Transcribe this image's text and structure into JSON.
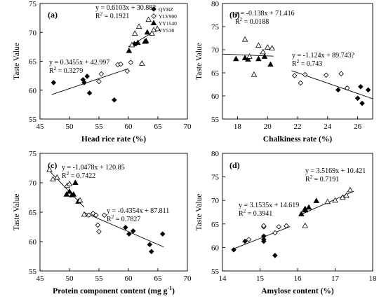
{
  "chart_data": [
    {
      "type": "scatter",
      "panel_label": "(a)",
      "xlabel": "Head rice rate (%)",
      "ylabel": "Taste Value",
      "xlim": [
        45,
        70
      ],
      "ylim": [
        55,
        75
      ],
      "xticks": [
        45,
        50,
        55,
        60,
        65,
        70
      ],
      "yticks": [
        55,
        60,
        65,
        70,
        75
      ],
      "legend": [
        "QYHZ",
        "YLY900",
        "YY1540",
        "YY538"
      ],
      "series": [
        {
          "name": "QYHZ",
          "marker": "filled-diamond",
          "points": [
            [
              47.3,
              61.3
            ],
            [
              52.3,
              61.8
            ],
            [
              52.5,
              61.3
            ],
            [
              53.0,
              62.4
            ],
            [
              53.4,
              59.5
            ],
            [
              57.6,
              58.3
            ]
          ]
        },
        {
          "name": "YLY900",
          "marker": "open-diamond",
          "points": [
            [
              55.0,
              61.5
            ],
            [
              55.4,
              62.8
            ],
            [
              58.2,
              64.4
            ],
            [
              58.7,
              64.5
            ],
            [
              59.8,
              63.3
            ],
            [
              60.4,
              64.8
            ]
          ]
        },
        {
          "name": "YY1540",
          "marker": "filled-triangle",
          "points": [
            [
              60.1,
              66.8
            ],
            [
              61.0,
              68.0
            ],
            [
              61.6,
              68.2
            ],
            [
              62.8,
              68.4
            ],
            [
              63.0,
              68.5
            ],
            [
              63.2,
              70.0
            ]
          ]
        },
        {
          "name": "YY538",
          "marker": "open-triangle",
          "points": [
            [
              60.6,
              67.8
            ],
            [
              61.1,
              69.8
            ],
            [
              61.8,
              71.0
            ],
            [
              62.3,
              64.6
            ],
            [
              63.4,
              72.2
            ],
            [
              64.0,
              69.8
            ],
            [
              64.9,
              70.6
            ]
          ]
        }
      ],
      "fits": [
        {
          "eq": "y = 0.6103x + 30.882",
          "r2": "0.1921",
          "slope": 0.6103,
          "intercept": 30.882,
          "xrange": [
            60,
            65
          ]
        },
        {
          "eq": "y = 0.3455x + 42.997",
          "r2": "0.3279",
          "slope": 0.3455,
          "intercept": 42.997,
          "xrange": [
            47,
            60
          ]
        }
      ]
    },
    {
      "type": "scatter",
      "panel_label": "(b)",
      "xlabel": "Chalkiness rate (%)",
      "ylabel": "Taste Value",
      "xlim": [
        17,
        27
      ],
      "ylim": [
        55,
        80
      ],
      "xticks": [
        18,
        20,
        22,
        24,
        26
      ],
      "yticks": [
        55,
        60,
        65,
        70,
        75,
        80
      ],
      "series": [
        {
          "name": "QYHZ",
          "marker": "filled-diamond",
          "points": [
            [
              24.7,
              61.3
            ],
            [
              26.0,
              59.5
            ],
            [
              26.2,
              62.0
            ],
            [
              26.3,
              58.4
            ],
            [
              26.7,
              61.3
            ]
          ]
        },
        {
          "name": "YLY900",
          "marker": "open-diamond",
          "points": [
            [
              21.8,
              64.4
            ],
            [
              22.2,
              62.8
            ],
            [
              22.5,
              64.6
            ],
            [
              23.9,
              64.5
            ],
            [
              24.9,
              64.8
            ],
            [
              25.3,
              61.7
            ]
          ]
        },
        {
          "name": "YY1540",
          "marker": "filled-triangle",
          "points": [
            [
              17.9,
              68.0
            ],
            [
              18.5,
              68.2
            ],
            [
              18.7,
              67.9
            ],
            [
              19.4,
              68.0
            ],
            [
              19.8,
              68.5
            ],
            [
              20.2,
              66.8
            ]
          ]
        },
        {
          "name": "YY538",
          "marker": "open-triangle",
          "points": [
            [
              18.5,
              72.2
            ],
            [
              18.8,
              68.5
            ],
            [
              19.1,
              64.6
            ],
            [
              19.4,
              70.9
            ],
            [
              19.7,
              69.5
            ],
            [
              20.0,
              70.5
            ],
            [
              20.3,
              70.3
            ]
          ]
        }
      ],
      "fits": [
        {
          "eq": "y = -0.138x + 71.416",
          "r2": "0.0188",
          "slope": -0.138,
          "intercept": 71.416,
          "xrange": [
            17,
            20.4
          ]
        },
        {
          "eq": "y = -1.124x + 89.743?",
          "r2": "0.743",
          "slope": -1.124,
          "intercept": 89.743,
          "xrange": [
            21.6,
            27
          ]
        }
      ]
    },
    {
      "type": "scatter",
      "panel_label": "(c)",
      "xlabel": "Protein component content (mg g",
      "xlabel_sup": "-1",
      "xlabel_end": ")",
      "ylabel": "Taste Value",
      "xlim": [
        45,
        70
      ],
      "ylim": [
        55,
        75
      ],
      "xticks": [
        45,
        50,
        55,
        60,
        65,
        70
      ],
      "yticks": [
        55,
        60,
        65,
        70,
        75
      ],
      "series": [
        {
          "name": "QYHZ",
          "marker": "filled-diamond",
          "points": [
            [
              59.5,
              62.4
            ],
            [
              60.1,
              61.3
            ],
            [
              60.8,
              61.8
            ],
            [
              63.6,
              59.5
            ],
            [
              63.9,
              58.3
            ],
            [
              65.8,
              61.3
            ]
          ]
        },
        {
          "name": "YLY900",
          "marker": "open-diamond",
          "points": [
            [
              53.3,
              64.5
            ],
            [
              54.0,
              64.8
            ],
            [
              54.5,
              64.5
            ],
            [
              54.8,
              62.8
            ],
            [
              55.0,
              61.7
            ],
            [
              55.9,
              64.5
            ]
          ]
        },
        {
          "name": "YY1540",
          "marker": "filled-triangle",
          "points": [
            [
              49.5,
              68.0
            ],
            [
              50.0,
              68.5
            ],
            [
              50.4,
              67.9
            ],
            [
              50.7,
              68.0
            ],
            [
              51.0,
              70.0
            ],
            [
              51.5,
              66.8
            ]
          ]
        },
        {
          "name": "YY538",
          "marker": "open-triangle",
          "points": [
            [
              46.6,
              72.2
            ],
            [
              47.2,
              70.6
            ],
            [
              47.9,
              70.9
            ],
            [
              49.6,
              69.5
            ],
            [
              50.0,
              69.8
            ],
            [
              51.8,
              67.0
            ],
            [
              52.5,
              64.6
            ]
          ]
        }
      ],
      "fits": [
        {
          "eq": "y = -1.0478x + 120.85",
          "r2": "0.7422",
          "slope": -1.0478,
          "intercept": 120.85,
          "xrange": [
            46.5,
            52.5
          ]
        },
        {
          "eq": "y = -0.4354x + 87.811",
          "r2": "0.7827",
          "slope": -0.4354,
          "intercept": 87.811,
          "xrange": [
            52.5,
            66
          ]
        }
      ]
    },
    {
      "type": "scatter",
      "panel_label": "(d)",
      "xlabel": "Amylose content (%)",
      "ylabel": "Taste Value",
      "xlim": [
        14,
        18
      ],
      "ylim": [
        55,
        80
      ],
      "xticks": [
        14,
        15,
        16,
        17,
        18
      ],
      "yticks": [
        55,
        60,
        65,
        70,
        75,
        80
      ],
      "series": [
        {
          "name": "QYHZ",
          "marker": "filled-diamond",
          "points": [
            [
              14.3,
              59.5
            ],
            [
              14.6,
              61.3
            ],
            [
              15.1,
              61.7
            ],
            [
              15.1,
              61.3
            ],
            [
              15.1,
              62.4
            ],
            [
              15.4,
              58.3
            ]
          ]
        },
        {
          "name": "YLY900",
          "marker": "open-diamond",
          "points": [
            [
              14.7,
              61.7
            ],
            [
              15.1,
              64.4
            ],
            [
              15.1,
              64.6
            ],
            [
              15.4,
              63.1
            ],
            [
              15.5,
              64.4
            ],
            [
              15.7,
              64.6
            ]
          ]
        },
        {
          "name": "YY1540",
          "marker": "filled-triangle",
          "points": [
            [
              16.1,
              67.1
            ],
            [
              16.2,
              68.0
            ],
            [
              16.2,
              68.2
            ],
            [
              16.3,
              68.5
            ],
            [
              16.5,
              69.9
            ],
            [
              16.2,
              67.9
            ]
          ]
        },
        {
          "name": "YY538",
          "marker": "open-triangle",
          "points": [
            [
              16.2,
              64.6
            ],
            [
              16.8,
              69.7
            ],
            [
              17.0,
              70.0
            ],
            [
              17.2,
              70.6
            ],
            [
              17.3,
              71.0
            ],
            [
              17.4,
              72.2
            ]
          ]
        }
      ],
      "fits": [
        {
          "eq": "y = 3.1535x + 14.619",
          "r2": "0.3941",
          "slope": 3.1535,
          "intercept": 14.619,
          "xrange": [
            14.3,
            15.8
          ]
        },
        {
          "eq": "y = 3.5169x + 10.421",
          "r2": "0.7191",
          "slope": 3.5169,
          "intercept": 10.421,
          "xrange": [
            16.1,
            17.5
          ]
        }
      ]
    }
  ]
}
